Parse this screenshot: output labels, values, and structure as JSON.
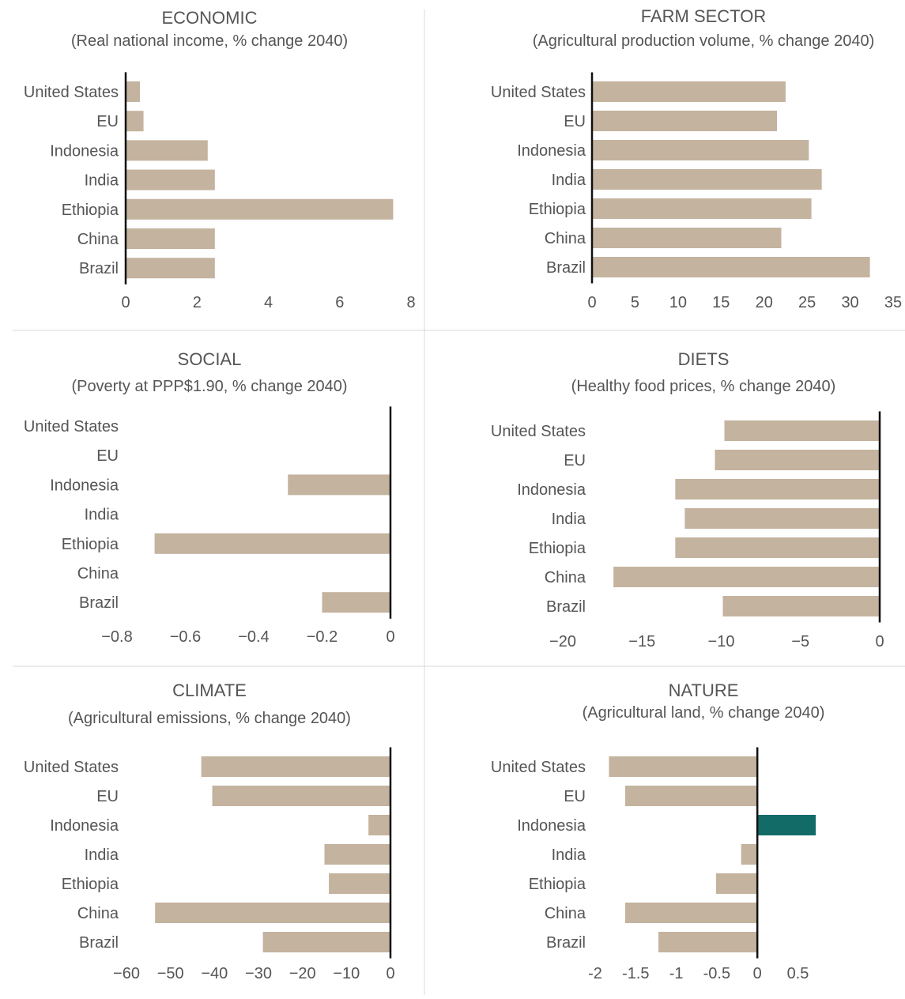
{
  "colors": {
    "bar": "#c4b39f",
    "bar_positive_highlight": "#136b67",
    "axis": "#111111",
    "text": "#555555",
    "divider": "#d9d9d9"
  },
  "chart_data": [
    {
      "type": "bar",
      "orientation": "horizontal",
      "title": "ECONOMIC",
      "subtitle": "(Real national income, % change 2040)",
      "categories": [
        "United States",
        "EU",
        "Indonesia",
        "India",
        "Ethiopia",
        "China",
        "Brazil"
      ],
      "values": [
        0.4,
        0.5,
        2.3,
        2.5,
        7.5,
        2.5,
        2.5
      ],
      "xlim": [
        0,
        8
      ],
      "xticks": [
        0,
        2,
        4,
        6,
        8
      ],
      "tick_labels": [
        "0",
        "2",
        "4",
        "6",
        "8"
      ]
    },
    {
      "type": "bar",
      "orientation": "horizontal",
      "title": "FARM SECTOR",
      "subtitle": "(Agricultural production volume, % change 2040)",
      "categories": [
        "United States",
        "EU",
        "Indonesia",
        "India",
        "Ethiopia",
        "China",
        "Brazil"
      ],
      "values": [
        22.5,
        21.5,
        25.2,
        26.7,
        25.5,
        22.0,
        32.3
      ],
      "xlim": [
        0,
        35
      ],
      "xticks": [
        0,
        5,
        10,
        15,
        20,
        25,
        30,
        35
      ],
      "tick_labels": [
        "0",
        "5",
        "10",
        "15",
        "20",
        "25",
        "30",
        "35"
      ]
    },
    {
      "type": "bar",
      "orientation": "horizontal",
      "title": "SOCIAL",
      "subtitle": "(Poverty at PPP$1.90, % change 2040)",
      "categories": [
        "United States",
        "EU",
        "Indonesia",
        "India",
        "Ethiopia",
        "China",
        "Brazil"
      ],
      "values": [
        0,
        0,
        -0.3,
        0,
        -0.69,
        0,
        -0.2
      ],
      "xlim": [
        -0.8,
        0
      ],
      "xticks": [
        -0.8,
        -0.6,
        -0.4,
        -0.2,
        0
      ],
      "tick_labels": [
        "−0.8",
        "−0.6",
        "−0.4",
        "−0.2",
        "0"
      ]
    },
    {
      "type": "bar",
      "orientation": "horizontal",
      "title": "DIETS",
      "subtitle": "(Healthy food prices, % change 2040)",
      "categories": [
        "United States",
        "EU",
        "Indonesia",
        "India",
        "Ethiopia",
        "China",
        "Brazil"
      ],
      "values": [
        -9.8,
        -10.4,
        -12.9,
        -12.3,
        -12.9,
        -16.8,
        -9.9
      ],
      "xlim": [
        -20,
        0
      ],
      "xticks": [
        -20,
        -15,
        -10,
        -5,
        0
      ],
      "tick_labels": [
        "−20",
        "−15",
        "−10",
        "−5",
        "0"
      ]
    },
    {
      "type": "bar",
      "orientation": "horizontal",
      "title": "CLIMATE",
      "subtitle": "(Agricultural emissions, % change 2040)",
      "categories": [
        "United States",
        "EU",
        "Indonesia",
        "India",
        "Ethiopia",
        "China",
        "Brazil"
      ],
      "values": [
        -43,
        -40.5,
        -5,
        -15,
        -14,
        -53.5,
        -29
      ],
      "xlim": [
        -60,
        0
      ],
      "xticks": [
        -60,
        -50,
        -40,
        -30,
        -20,
        -10,
        0
      ],
      "tick_labels": [
        "−60",
        "−50",
        "−40",
        "−30",
        "−20",
        "−10",
        "0"
      ]
    },
    {
      "type": "bar",
      "orientation": "horizontal",
      "title": "NATURE",
      "subtitle": "(Agricultural land, % change 2040)",
      "categories": [
        "United States",
        "EU",
        "Indonesia",
        "India",
        "Ethiopia",
        "China",
        "Brazil"
      ],
      "values": [
        -1.83,
        -1.63,
        0.72,
        -0.2,
        -0.51,
        -1.63,
        -1.22
      ],
      "xlim": [
        -2,
        0.7
      ],
      "xticks": [
        -2,
        -1.5,
        -1,
        -0.5,
        0,
        0.5
      ],
      "tick_labels": [
        "-2",
        "-1.5",
        "-1",
        "-0.5",
        "0",
        "0.5"
      ]
    }
  ]
}
